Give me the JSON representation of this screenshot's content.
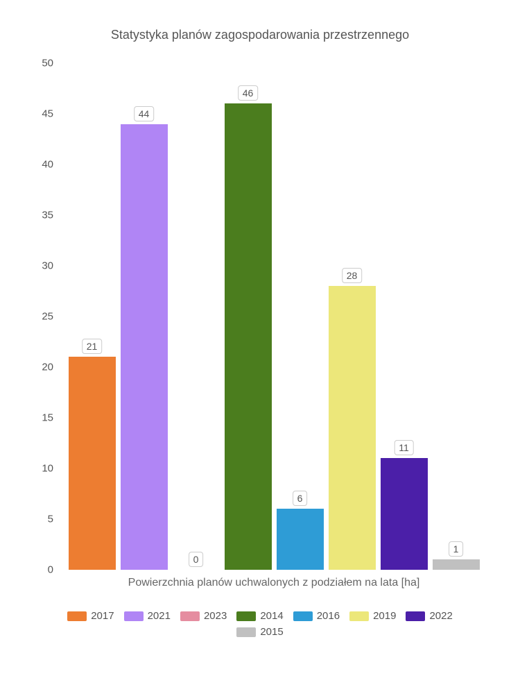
{
  "chart": {
    "type": "bar",
    "title": "Statystyka planów zagospodarowania przestrzennego",
    "title_fontsize": 18,
    "title_color": "#555555",
    "x_axis_label": "Powierzchnia planów uchwalonych z podziałem na lata [ha]",
    "x_axis_label_fontsize": 16,
    "x_axis_label_color": "#666666",
    "background_color": "#ffffff",
    "ylim": [
      0,
      50
    ],
    "ytick_step": 5,
    "yticks": [
      "0",
      "5",
      "10",
      "15",
      "20",
      "25",
      "30",
      "35",
      "40",
      "45",
      "50"
    ],
    "ytick_fontsize": 15,
    "ytick_color": "#555555",
    "bar_label_bg": "#ffffff",
    "bar_label_border": "#cccccc",
    "bar_label_fontsize": 14,
    "legend_fontsize": 15,
    "legend_color": "#555555",
    "series": [
      {
        "year": "2017",
        "value": 21,
        "color": "#ed7d31"
      },
      {
        "year": "2021",
        "value": 44,
        "color": "#b085f5"
      },
      {
        "year": "2023",
        "value": 0,
        "color": "#e58da0"
      },
      {
        "year": "2014",
        "value": 46,
        "color": "#4b7d1e"
      },
      {
        "year": "2016",
        "value": 6,
        "color": "#2e9cd6"
      },
      {
        "year": "2019",
        "value": 28,
        "color": "#ece77a"
      },
      {
        "year": "2022",
        "value": 11,
        "color": "#4b1fa8"
      },
      {
        "year": "2015",
        "value": 1,
        "color": "#c0c0c0"
      }
    ]
  }
}
